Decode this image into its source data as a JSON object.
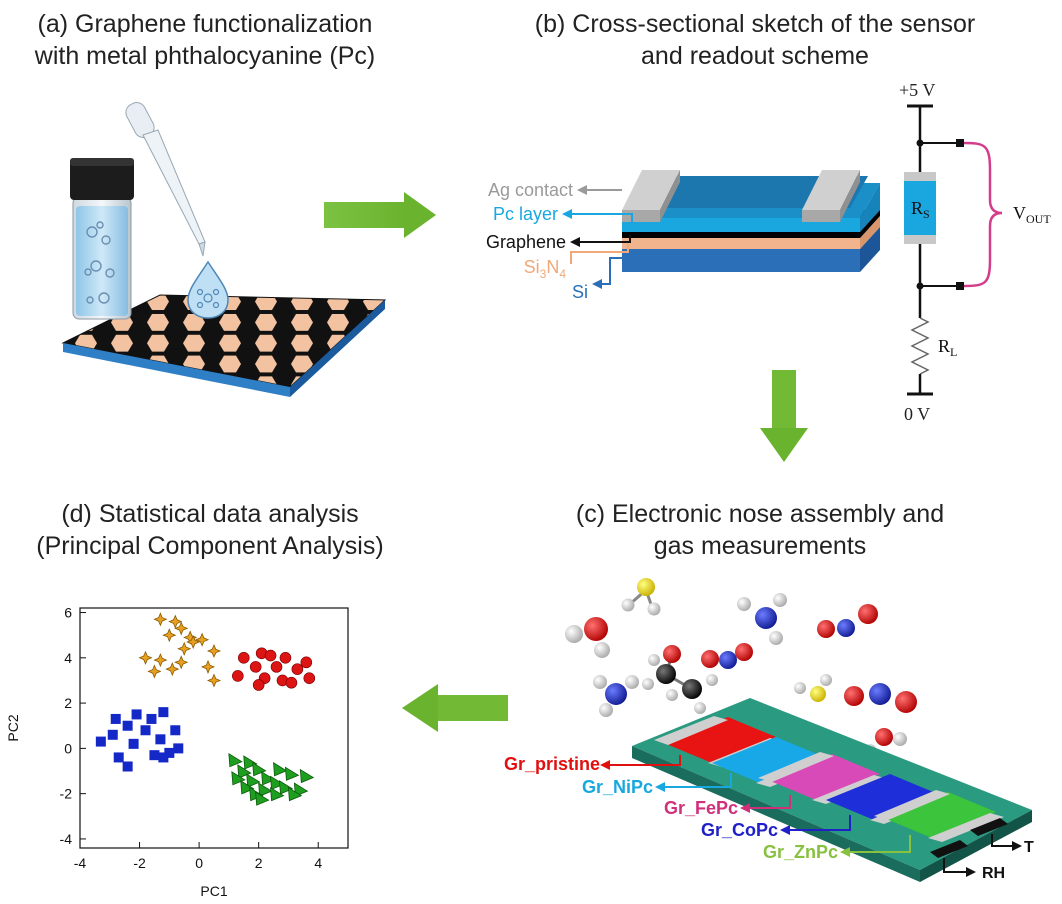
{
  "panels": {
    "a": {
      "title_line1": "(a) Graphene functionalization",
      "title_line2": "with metal phthalocyanine (Pc)"
    },
    "b": {
      "title_line1": "(b) Cross-sectional sketch of the sensor",
      "title_line2": "and readout scheme"
    },
    "c": {
      "title_line1": "(c) Electronic nose assembly and",
      "title_line2": "gas measurements"
    },
    "d": {
      "title_line1": "(d) Statistical data analysis",
      "title_line2": "(Principal Component Analysis)"
    }
  },
  "sensor_layers": [
    {
      "label": "Ag contact",
      "color": "#9a9a9a"
    },
    {
      "label": "Pc layer",
      "color": "#1aa7e0"
    },
    {
      "label": "Graphene",
      "color": "#111111"
    },
    {
      "label": "Si3N4",
      "color": "#f0a878"
    },
    {
      "label": "Si",
      "color": "#2a6fb8"
    }
  ],
  "circuit": {
    "supply": "+5 V",
    "ground": "0 V",
    "sensor_resistor": "R",
    "sensor_resistor_sub": "S",
    "load_resistor": "R",
    "load_resistor_sub": "L",
    "output": "V",
    "output_sub": "OUT"
  },
  "nose_labels": [
    {
      "label": "Gr_pristine",
      "color": "#e01010"
    },
    {
      "label": "Gr_NiPc",
      "color": "#18a8e0"
    },
    {
      "label": "Gr_FePc",
      "color": "#d0307a"
    },
    {
      "label": "Gr_CoPc",
      "color": "#2020c8"
    },
    {
      "label": "Gr_ZnPc",
      "color": "#88c040"
    }
  ],
  "env_sensors": {
    "humidity": "RH",
    "temperature": "T"
  },
  "chart_data": {
    "type": "scatter",
    "xlabel": "PC1",
    "ylabel": "PC2",
    "xlim": [
      -4,
      5
    ],
    "ylim": [
      -4.4,
      6.2
    ],
    "xticks": [
      -4,
      -2,
      0,
      2,
      4
    ],
    "yticks": [
      -4,
      -2,
      0,
      2,
      4,
      6
    ],
    "series": [
      {
        "marker": "star",
        "color": "#e8a020",
        "points": [
          [
            -1.3,
            5.7
          ],
          [
            -0.8,
            5.6
          ],
          [
            -0.6,
            5.3
          ],
          [
            -1.0,
            5.0
          ],
          [
            -0.3,
            4.9
          ],
          [
            0.1,
            4.8
          ],
          [
            -0.2,
            4.7
          ],
          [
            -0.5,
            4.4
          ],
          [
            0.5,
            4.3
          ],
          [
            -1.8,
            4.0
          ],
          [
            -1.3,
            3.9
          ],
          [
            -0.6,
            3.8
          ],
          [
            -0.9,
            3.5
          ],
          [
            0.3,
            3.6
          ],
          [
            0.5,
            3.0
          ],
          [
            -1.5,
            3.4
          ]
        ]
      },
      {
        "marker": "circle",
        "color": "#dd1414",
        "points": [
          [
            2.1,
            4.2
          ],
          [
            1.5,
            4.0
          ],
          [
            2.4,
            4.1
          ],
          [
            2.9,
            4.0
          ],
          [
            3.6,
            3.8
          ],
          [
            1.9,
            3.6
          ],
          [
            2.6,
            3.6
          ],
          [
            3.3,
            3.5
          ],
          [
            1.3,
            3.2
          ],
          [
            2.2,
            3.1
          ],
          [
            2.8,
            3.0
          ],
          [
            3.7,
            3.1
          ],
          [
            3.1,
            2.9
          ],
          [
            2.0,
            2.8
          ]
        ]
      },
      {
        "marker": "square",
        "color": "#1428c8",
        "points": [
          [
            -2.8,
            1.3
          ],
          [
            -2.1,
            1.5
          ],
          [
            -1.2,
            1.6
          ],
          [
            -1.6,
            1.3
          ],
          [
            -2.4,
            1.0
          ],
          [
            -0.8,
            0.8
          ],
          [
            -2.9,
            0.6
          ],
          [
            -1.8,
            0.8
          ],
          [
            -1.3,
            0.4
          ],
          [
            -3.3,
            0.3
          ],
          [
            -2.2,
            0.2
          ],
          [
            -1.5,
            -0.3
          ],
          [
            -1.0,
            -0.2
          ],
          [
            -0.7,
            0.0
          ],
          [
            -2.7,
            -0.4
          ],
          [
            -1.2,
            -0.4
          ],
          [
            -2.4,
            -0.8
          ]
        ]
      },
      {
        "marker": "triangle",
        "color": "#1e9e1e",
        "points": [
          [
            1.2,
            -0.5
          ],
          [
            1.7,
            -0.6
          ],
          [
            2.0,
            -0.9
          ],
          [
            2.7,
            -0.9
          ],
          [
            1.5,
            -1.0
          ],
          [
            3.1,
            -1.1
          ],
          [
            1.3,
            -1.3
          ],
          [
            2.3,
            -1.3
          ],
          [
            1.8,
            -1.4
          ],
          [
            3.6,
            -1.2
          ],
          [
            2.6,
            -1.5
          ],
          [
            1.6,
            -1.7
          ],
          [
            2.2,
            -1.8
          ],
          [
            2.9,
            -1.7
          ],
          [
            3.4,
            -1.8
          ],
          [
            1.9,
            -2.0
          ],
          [
            2.6,
            -2.0
          ],
          [
            3.2,
            -2.0
          ],
          [
            2.1,
            -2.2
          ]
        ]
      }
    ]
  }
}
